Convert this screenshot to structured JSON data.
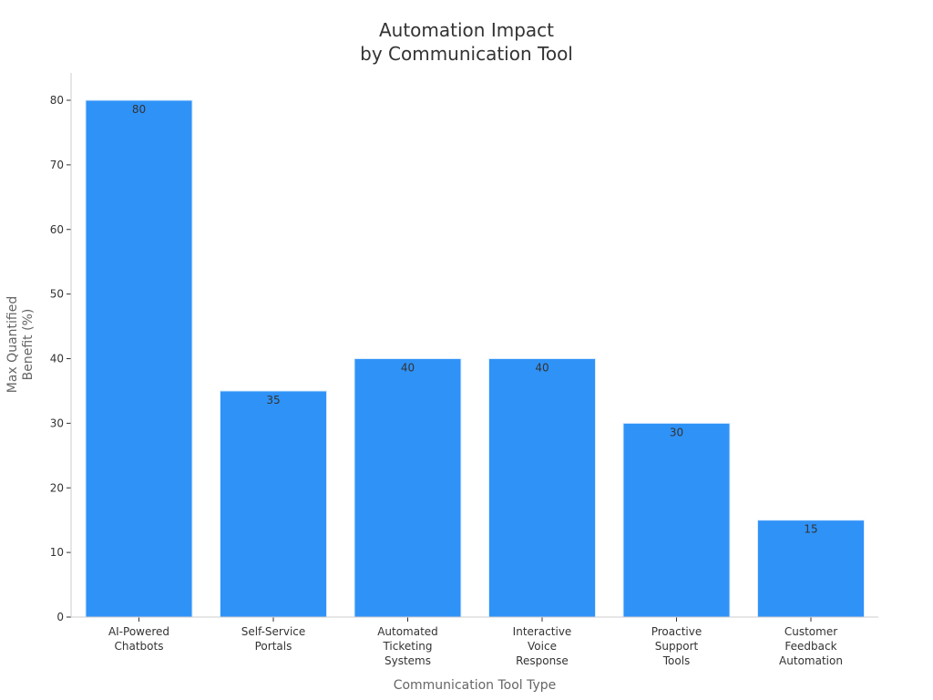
{
  "chart_data": {
    "type": "bar",
    "title": [
      "Automation Impact",
      "by Communication Tool"
    ],
    "xlabel": "Communication Tool Type",
    "ylabel": [
      "Max Quantified",
      "Benefit (%)"
    ],
    "categories": [
      [
        "AI-Powered",
        "Chatbots"
      ],
      [
        "Self-Service",
        "Portals"
      ],
      [
        "Automated",
        "Ticketing",
        "Systems"
      ],
      [
        "Interactive",
        "Voice",
        "Response"
      ],
      [
        "Proactive",
        "Support",
        "Tools"
      ],
      [
        "Customer",
        "Feedback",
        "Automation"
      ]
    ],
    "values": [
      80,
      35,
      40,
      40,
      30,
      15
    ],
    "data_labels": [
      "80",
      "35",
      "40",
      "40",
      "30",
      "15"
    ],
    "ylim": [
      0,
      80
    ],
    "yticks": [
      0,
      10,
      20,
      30,
      40,
      50,
      60,
      70,
      80
    ],
    "grid": false,
    "bar_color": "#2f92f7"
  }
}
